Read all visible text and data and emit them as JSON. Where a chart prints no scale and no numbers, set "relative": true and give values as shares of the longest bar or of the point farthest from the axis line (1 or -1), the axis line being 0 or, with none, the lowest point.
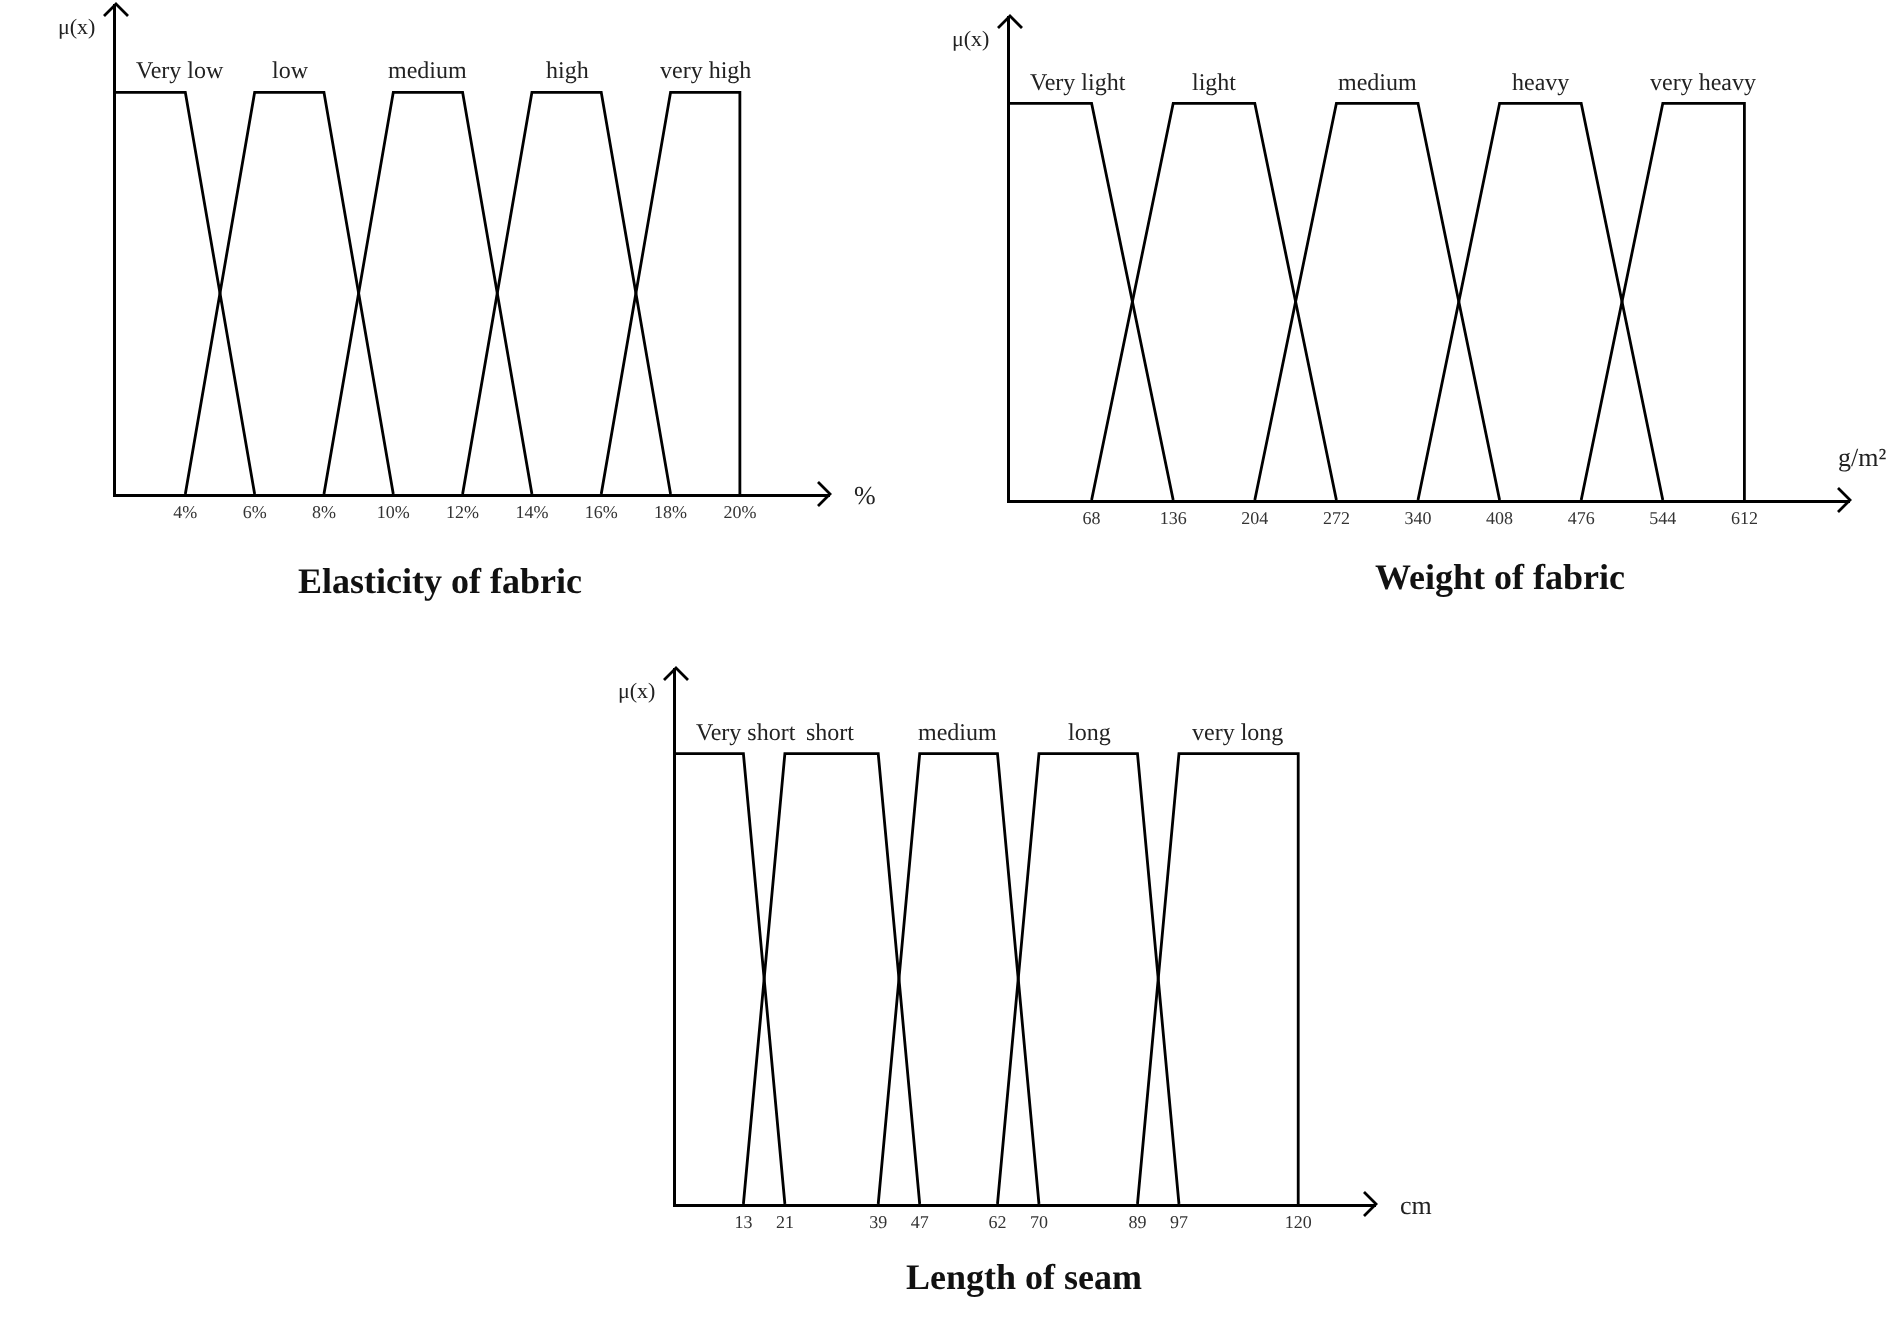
{
  "chart_data": [
    {
      "type": "line",
      "title": "Elasticity of fabric",
      "xlabel": "%",
      "ylabel": "μ(x)",
      "relative": true,
      "tick_labels": "x",
      "grid": false,
      "legend": false,
      "marker": "none",
      "line_style": "solid",
      "xlim": [
        2,
        22.6
      ],
      "xticks": [
        {
          "value": 4,
          "label": "4%"
        },
        {
          "value": 6,
          "label": "6%"
        },
        {
          "value": 8,
          "label": "8%"
        },
        {
          "value": 10,
          "label": "10%"
        },
        {
          "value": 12,
          "label": "12%"
        },
        {
          "value": 14,
          "label": "14%"
        },
        {
          "value": 16,
          "label": "16%"
        },
        {
          "value": 18,
          "label": "18%"
        },
        {
          "value": 20,
          "label": "20%"
        }
      ],
      "series": [
        {
          "name": "Very low",
          "color": "#000000",
          "x": [
            2,
            4,
            6
          ],
          "values": [
            1,
            1,
            0
          ]
        },
        {
          "name": "low",
          "color": "#000000",
          "x": [
            4,
            6,
            8,
            10
          ],
          "values": [
            0,
            1,
            1,
            0
          ]
        },
        {
          "name": "medium",
          "color": "#000000",
          "x": [
            8,
            10,
            12,
            14
          ],
          "values": [
            0,
            1,
            1,
            0
          ]
        },
        {
          "name": "high",
          "color": "#000000",
          "x": [
            12,
            14,
            16,
            18
          ],
          "values": [
            0,
            1,
            1,
            0
          ]
        },
        {
          "name": "very high",
          "color": "#000000",
          "x": [
            16,
            18,
            20,
            20
          ],
          "values": [
            0,
            1,
            1,
            0
          ]
        }
      ]
    },
    {
      "type": "line",
      "title": "Weight of fabric",
      "xlabel": "g/m²",
      "ylabel": "μ(x)",
      "relative": true,
      "tick_labels": "x",
      "grid": false,
      "legend": false,
      "marker": "none",
      "line_style": "solid",
      "xlim": [
        0,
        700
      ],
      "xticks": [
        68,
        136,
        204,
        272,
        340,
        408,
        476,
        544,
        612
      ],
      "series": [
        {
          "name": "Very light",
          "color": "#000000",
          "x": [
            0,
            68,
            136
          ],
          "values": [
            1,
            1,
            0
          ]
        },
        {
          "name": "light",
          "color": "#000000",
          "x": [
            68,
            136,
            204,
            272
          ],
          "values": [
            0,
            1,
            1,
            0
          ]
        },
        {
          "name": "medium",
          "color": "#000000",
          "x": [
            204,
            272,
            340,
            408
          ],
          "values": [
            0,
            1,
            1,
            0
          ]
        },
        {
          "name": "heavy",
          "color": "#000000",
          "x": [
            340,
            408,
            476,
            544
          ],
          "values": [
            0,
            1,
            1,
            0
          ]
        },
        {
          "name": "very heavy",
          "color": "#000000",
          "x": [
            476,
            544,
            612,
            612
          ],
          "values": [
            0,
            1,
            1,
            0
          ]
        }
      ]
    },
    {
      "type": "line",
      "title": "Length of seam",
      "xlabel": "cm",
      "ylabel": "μ(x)",
      "relative": true,
      "tick_labels": "x",
      "grid": false,
      "legend": false,
      "marker": "none",
      "line_style": "solid",
      "xlim": [
        0,
        135
      ],
      "xticks": [
        13,
        21,
        39,
        47,
        62,
        70,
        89,
        97,
        120
      ],
      "series": [
        {
          "name": "Very short",
          "color": "#000000",
          "x": [
            0,
            13,
            21
          ],
          "values": [
            1,
            1,
            0
          ]
        },
        {
          "name": "short",
          "color": "#000000",
          "x": [
            13,
            21,
            39,
            47
          ],
          "values": [
            0,
            1,
            1,
            0
          ]
        },
        {
          "name": "medium",
          "color": "#000000",
          "x": [
            39,
            47,
            62,
            70
          ],
          "values": [
            0,
            1,
            1,
            0
          ]
        },
        {
          "name": "long",
          "color": "#000000",
          "x": [
            62,
            70,
            89,
            97
          ],
          "values": [
            0,
            1,
            1,
            0
          ]
        },
        {
          "name": "very long",
          "color": "#000000",
          "x": [
            89,
            97,
            120,
            120
          ],
          "values": [
            0,
            1,
            1,
            0
          ]
        }
      ]
    }
  ]
}
